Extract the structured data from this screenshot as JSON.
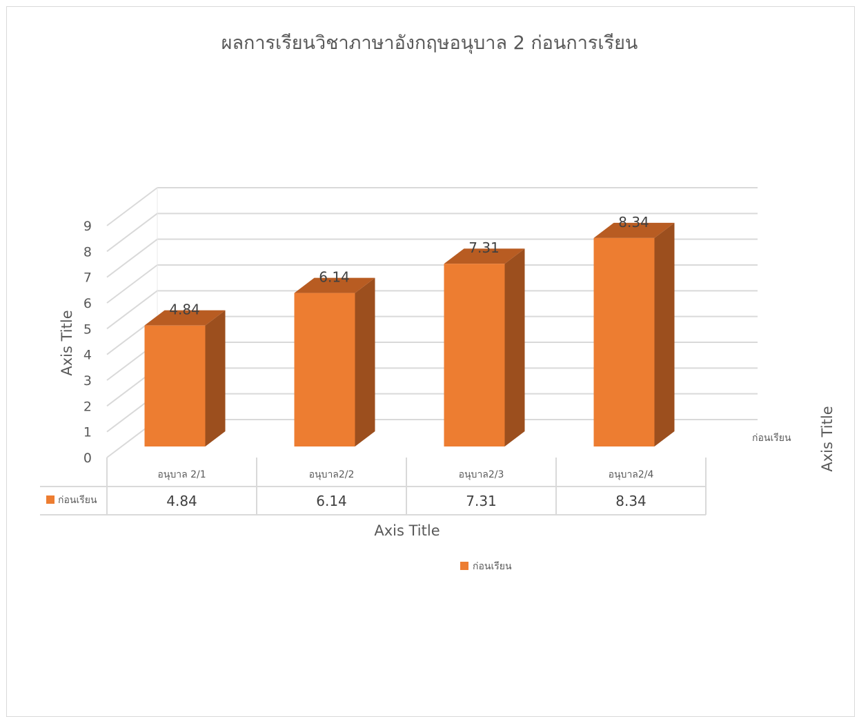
{
  "chart_data": {
    "type": "bar",
    "title": "ผลการเรียนวิชาภาษาอังกฤษอนุบาล 2 ก่อนการเรียน",
    "categories": [
      "อนุบาล 2/1",
      "อนุบาล2/2",
      "อนุบาล2/3",
      "อนุบาล2/4"
    ],
    "series": [
      {
        "name": "ก่อนเรียน",
        "values": [
          4.84,
          6.14,
          7.31,
          8.34
        ],
        "color": "#ED7D31"
      }
    ],
    "xlabel": "Axis Title",
    "ylabel": "Axis Title",
    "zlabel": "Axis Title",
    "ylim": [
      0,
      9
    ],
    "yticks": [
      "0",
      "1",
      "2",
      "3",
      "4",
      "5",
      "6",
      "7",
      "8",
      "9"
    ],
    "data_labels": [
      "4.84",
      "6.14",
      "7.31",
      "8.34"
    ],
    "table_values": [
      "4.84",
      "6.14",
      "7.31",
      "8.34"
    ],
    "depth_label": "ก่อนเรียน",
    "legend": {
      "position": "bottom",
      "label": "ก่อนเรียน"
    },
    "grid": true,
    "style": "3d-column-with-data-table"
  }
}
